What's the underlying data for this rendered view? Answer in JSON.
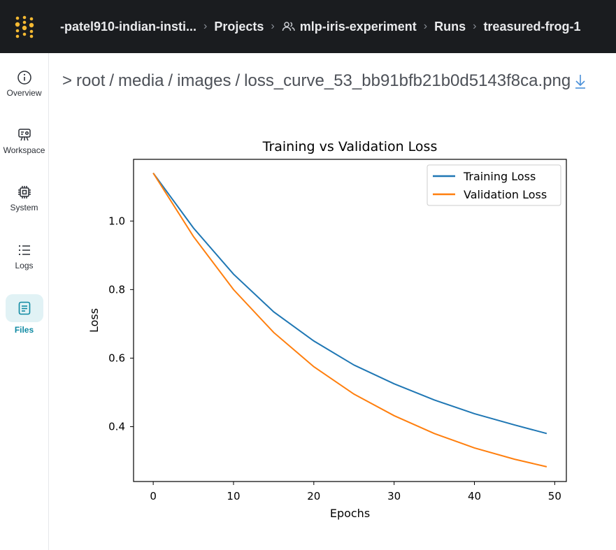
{
  "header": {
    "breadcrumbs": [
      {
        "label": "-patel910-indian-insti..."
      },
      {
        "label": "Projects"
      },
      {
        "label": "mlp-iris-experiment"
      },
      {
        "label": "Runs"
      },
      {
        "label": "treasured-frog-1"
      }
    ]
  },
  "sidebar": {
    "items": [
      {
        "label": "Overview",
        "icon": "info-icon"
      },
      {
        "label": "Workspace",
        "icon": "workspace-icon"
      },
      {
        "label": "System",
        "icon": "chip-icon"
      },
      {
        "label": "Logs",
        "icon": "list-icon"
      },
      {
        "label": "Files",
        "icon": "file-icon",
        "active": true
      }
    ]
  },
  "file_path": {
    "prefix": ">",
    "segments": [
      "root",
      "media",
      "images",
      "loss_curve_53_bb91bfb21b0d5143f8ca.png"
    ],
    "separator": "/"
  },
  "colors": {
    "accent": "#0f8aa3",
    "training": "#1f77b4",
    "validation": "#ff7f0e"
  },
  "chart_data": {
    "type": "line",
    "title": "Training vs Validation Loss",
    "xlabel": "Epochs",
    "ylabel": "Loss",
    "xlim": [
      -2.45,
      51.45
    ],
    "ylim": [
      0.24,
      1.18
    ],
    "x_ticks": [
      "0",
      "10",
      "20",
      "30",
      "40",
      "50"
    ],
    "y_ticks": [
      "0.4",
      "0.6",
      "0.8",
      "1.0"
    ],
    "legend": "top-right",
    "series": [
      {
        "name": "Training Loss",
        "color": "#1f77b4",
        "x": [
          0,
          5,
          10,
          15,
          20,
          25,
          30,
          35,
          40,
          45,
          49
        ],
        "y": [
          1.14,
          0.98,
          0.845,
          0.735,
          0.65,
          0.58,
          0.525,
          0.478,
          0.438,
          0.405,
          0.38
        ]
      },
      {
        "name": "Validation Loss",
        "color": "#ff7f0e",
        "x": [
          0,
          5,
          10,
          15,
          20,
          25,
          30,
          35,
          40,
          45,
          49
        ],
        "y": [
          1.14,
          0.955,
          0.8,
          0.675,
          0.575,
          0.495,
          0.432,
          0.38,
          0.338,
          0.305,
          0.283
        ]
      }
    ]
  }
}
